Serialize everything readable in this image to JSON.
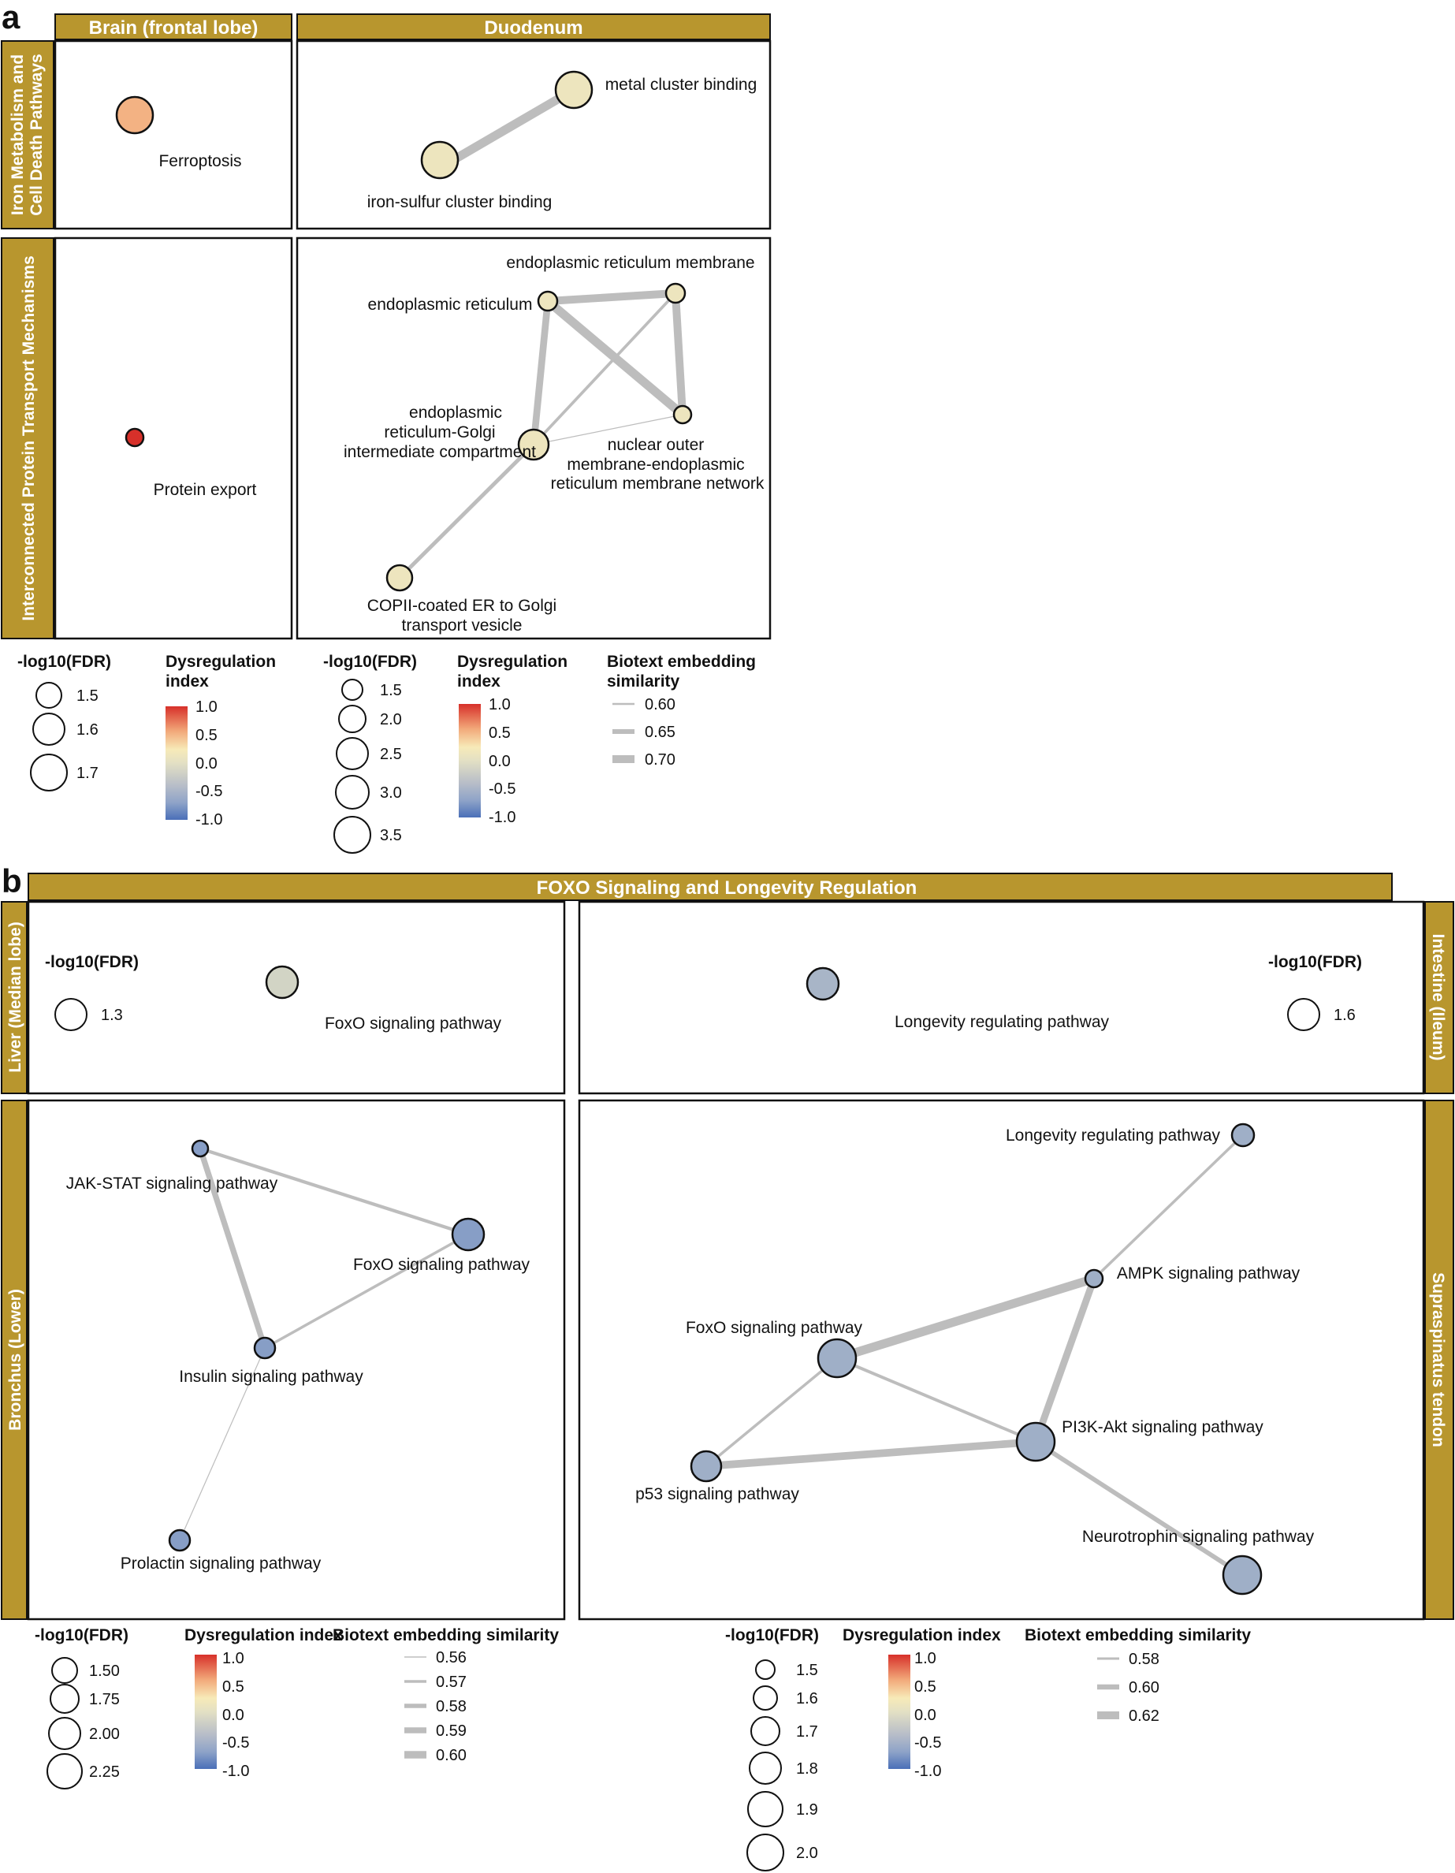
{
  "figure": {
    "panel_tags": {
      "a": "a",
      "b": "b"
    },
    "a": {
      "col_headers": [
        "Brain (frontal lobe)",
        "Duodenum"
      ],
      "row_headers": [
        [
          "Iron Metabolism and",
          "Cell Death Pathways"
        ],
        [
          "Interconnected Protein  Transport Mechanisms"
        ]
      ],
      "nodes": [
        {
          "id": "a-brain-ferroptosis",
          "label": [
            "Ferroptosis"
          ],
          "fdr": 1.7,
          "di": 0.6
        },
        {
          "id": "a-duo-metal",
          "label": [
            "metal cluster binding"
          ],
          "fdr": 2.3,
          "di": 0.15
        },
        {
          "id": "a-duo-ironsulfur",
          "label": [
            "iron-sulfur cluster binding"
          ],
          "fdr": 2.3,
          "di": 0.15
        },
        {
          "id": "a-brain-protein-export",
          "label": [
            "Protein export"
          ],
          "fdr": 1.5,
          "di": 1.0
        },
        {
          "id": "a-duo-er",
          "label": [
            "endoplasmic reticulum"
          ],
          "fdr": 1.5,
          "di": 0.15
        },
        {
          "id": "a-duo-erm",
          "label": [
            "endoplasmic reticulum membrane"
          ],
          "fdr": 1.5,
          "di": 0.15
        },
        {
          "id": "a-duo-ergic",
          "label": [
            "endoplasmic",
            "reticulum-Golgi",
            "intermediate compartment"
          ],
          "fdr": 2.0,
          "di": 0.15
        },
        {
          "id": "a-duo-nuclear",
          "label": [
            "nuclear outer",
            "membrane-endoplasmic",
            "reticulum membrane network"
          ],
          "fdr": 1.4,
          "di": 0.15
        },
        {
          "id": "a-duo-copii",
          "label": [
            "COPII-coated ER to Golgi",
            "transport vesicle"
          ],
          "fdr": 1.7,
          "di": 0.15
        }
      ],
      "edges": [
        {
          "from": "a-duo-metal",
          "to": "a-duo-ironsulfur",
          "similarity": 0.68
        },
        {
          "from": "a-duo-er",
          "to": "a-duo-erm",
          "similarity": 0.67
        },
        {
          "from": "a-duo-er",
          "to": "a-duo-nuclear",
          "similarity": 0.68
        },
        {
          "from": "a-duo-er",
          "to": "a-duo-ergic",
          "similarity": 0.66
        },
        {
          "from": "a-duo-erm",
          "to": "a-duo-nuclear",
          "similarity": 0.67
        },
        {
          "from": "a-duo-erm",
          "to": "a-duo-ergic",
          "similarity": 0.62
        },
        {
          "from": "a-duo-ergic",
          "to": "a-duo-nuclear",
          "similarity": 0.6
        },
        {
          "from": "a-duo-ergic",
          "to": "a-duo-copii",
          "similarity": 0.63
        }
      ],
      "legends": [
        {
          "fdr_title": "-log10(FDR)",
          "fdr_items": [
            "1.5",
            "1.6",
            "1.7"
          ],
          "di_title": [
            "Dysregulation",
            "index"
          ],
          "di_ticks": [
            "1.0",
            "0.5",
            "0.0",
            "-0.5",
            "-1.0"
          ]
        },
        {
          "fdr_title": "-log10(FDR)",
          "fdr_items": [
            "1.5",
            "2.0",
            "2.5",
            "3.0",
            "3.5"
          ],
          "di_title": [
            "Dysregulation",
            "index"
          ],
          "di_ticks": [
            "1.0",
            "0.5",
            "0.0",
            "-0.5",
            "-1.0"
          ],
          "sim_title": [
            "Biotext embedding",
            "similarity"
          ],
          "sim_items": [
            "0.60",
            "0.65",
            "0.70"
          ]
        }
      ]
    },
    "b": {
      "top_header": "FOXO Signaling and Longevity Regulation",
      "left_headers": [
        "Liver (Median lobe)",
        "Bronchus (Lower)"
      ],
      "right_headers": [
        "Intestine (Ileum)",
        "Supraspinatus tendon"
      ],
      "inset_legends": [
        {
          "title": "-log10(FDR)",
          "item": "1.3"
        },
        {
          "title": "-log10(FDR)",
          "item": "1.6"
        }
      ],
      "nodes": [
        {
          "id": "b-liver-foxo",
          "label": [
            "FoxO signaling pathway"
          ],
          "fdr": 1.3,
          "di": -0.1
        },
        {
          "id": "b-ileum-longevity",
          "label": [
            "Longevity regulating pathway"
          ],
          "fdr": 1.6,
          "di": -0.35
        },
        {
          "id": "b-br-jak",
          "label": [
            "JAK-STAT signaling pathway"
          ],
          "fdr": 1.5,
          "di": -0.55
        },
        {
          "id": "b-br-foxo",
          "label": [
            "FoxO signaling pathway"
          ],
          "fdr": 2.25,
          "di": -0.55
        },
        {
          "id": "b-br-insulin",
          "label": [
            "Insulin signaling pathway"
          ],
          "fdr": 1.75,
          "di": -0.55
        },
        {
          "id": "b-br-prolactin",
          "label": [
            "Prolactin signaling pathway"
          ],
          "fdr": 1.75,
          "di": -0.55
        },
        {
          "id": "b-st-longevity",
          "label": [
            "Longevity regulating pathway"
          ],
          "fdr": 1.6,
          "di": -0.4
        },
        {
          "id": "b-st-ampk",
          "label": [
            "AMPK signaling pathway"
          ],
          "fdr": 1.4,
          "di": -0.4
        },
        {
          "id": "b-st-foxo",
          "label": [
            "FoxO signaling pathway"
          ],
          "fdr": 2.0,
          "di": -0.4
        },
        {
          "id": "b-st-pi3k",
          "label": [
            "PI3K-Akt signaling pathway"
          ],
          "fdr": 2.0,
          "di": -0.4
        },
        {
          "id": "b-st-p53",
          "label": [
            "p53 signaling pathway"
          ],
          "fdr": 1.8,
          "di": -0.4
        },
        {
          "id": "b-st-neurotrophin",
          "label": [
            "Neurotrophin signaling pathway"
          ],
          "fdr": 2.0,
          "di": -0.4
        }
      ],
      "edges": [
        {
          "from": "b-br-jak",
          "to": "b-br-foxo",
          "similarity": 0.58
        },
        {
          "from": "b-br-jak",
          "to": "b-br-insulin",
          "similarity": 0.6
        },
        {
          "from": "b-br-foxo",
          "to": "b-br-insulin",
          "similarity": 0.575
        },
        {
          "from": "b-br-insulin",
          "to": "b-br-prolactin",
          "similarity": 0.56
        },
        {
          "from": "b-st-longevity",
          "to": "b-st-ampk",
          "similarity": 0.575
        },
        {
          "from": "b-st-ampk",
          "to": "b-st-foxo",
          "similarity": 0.625
        },
        {
          "from": "b-st-ampk",
          "to": "b-st-pi3k",
          "similarity": 0.61
        },
        {
          "from": "b-st-foxo",
          "to": "b-st-pi3k",
          "similarity": 0.578
        },
        {
          "from": "b-st-foxo",
          "to": "b-st-p53",
          "similarity": 0.575
        },
        {
          "from": "b-st-p53",
          "to": "b-st-pi3k",
          "similarity": 0.615
        },
        {
          "from": "b-st-pi3k",
          "to": "b-st-neurotrophin",
          "similarity": 0.59
        }
      ],
      "legends": [
        {
          "fdr_title": "-log10(FDR)",
          "fdr_items": [
            "1.50",
            "1.75",
            "2.00",
            "2.25"
          ],
          "di_title": "Dysregulation index",
          "di_ticks": [
            "1.0",
            "0.5",
            "0.0",
            "-0.5",
            "-1.0"
          ],
          "sim_title": "Biotext embedding similarity",
          "sim_items": [
            "0.56",
            "0.57",
            "0.58",
            "0.59",
            "0.60"
          ]
        },
        {
          "fdr_title": "-log10(FDR)",
          "fdr_items": [
            "1.5",
            "1.6",
            "1.7",
            "1.8",
            "1.9",
            "2.0"
          ],
          "di_title": "Dysregulation index",
          "di_ticks": [
            "1.0",
            "0.5",
            "0.0",
            "-0.5",
            "-1.0"
          ],
          "sim_title": "Biotext embedding similarity",
          "sim_items": [
            "0.58",
            "0.60",
            "0.62"
          ]
        }
      ]
    },
    "colors": {
      "strip": "#b8962e",
      "edge": "#bdbdbd",
      "di_scale": [
        "#4a6fb8",
        "#8ea3c8",
        "#e3e0c4",
        "#f7eab8",
        "#f2a97a",
        "#d7302a"
      ]
    }
  }
}
